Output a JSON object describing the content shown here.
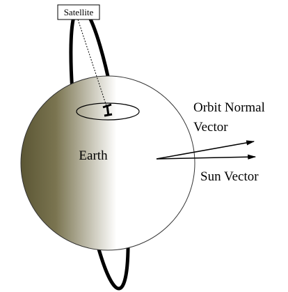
{
  "labels": {
    "satellite": "Satellite",
    "earth": "Earth",
    "orbit_normal": [
      "Orbit Normal",
      "Vector"
    ],
    "sun_vector": "Sun Vector"
  }
}
